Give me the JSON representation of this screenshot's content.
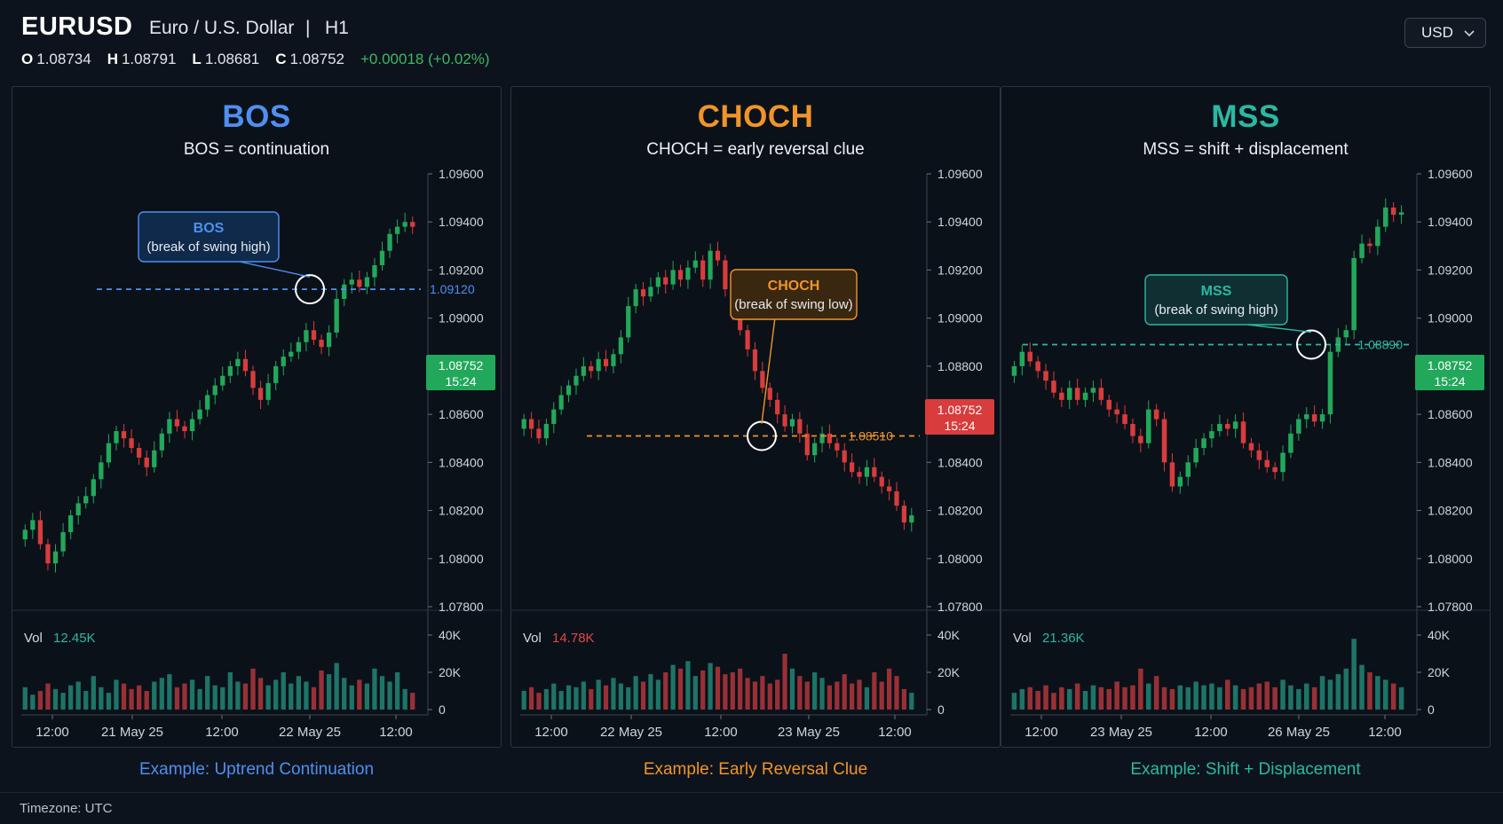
{
  "header": {
    "symbol": "EURUSD",
    "description": "Euro / U.S. Dollar",
    "separator": "|",
    "timeframe": "H1",
    "ohlc": {
      "o_label": "O",
      "o_value": "1.08734",
      "h_label": "H",
      "h_value": "1.08791",
      "l_label": "L",
      "l_value": "1.08681",
      "c_label": "C",
      "c_value": "1.08752",
      "change": "+0.00018 (+0.02%)"
    },
    "currency": "USD",
    "currency_icon": "chevron-down-icon"
  },
  "colors": {
    "up": "#22a85a",
    "down": "#d83c3c",
    "bos": "#4f8ff0",
    "choch": "#f0942a",
    "mss": "#2bb8a3"
  },
  "panels": [
    {
      "id": "bos",
      "title": "BOS",
      "subtitle": "BOS = continuation",
      "accent": "#4f8ff0",
      "callout_title": "BOS",
      "callout_text": "(break of swing high)",
      "level_label": "1.09120",
      "price_tag": "1.08752",
      "price_time": "15:24",
      "price_tag_color": "#22a85a",
      "vol_label": "Vol",
      "vol_value": "12.45K",
      "vol_value_color": "#2bb8a3",
      "caption": "Example: Uptrend Continuation",
      "y_ticks": [
        "1.09600",
        "1.09400",
        "1.09200",
        "1.09000",
        "1.08800",
        "1.08600",
        "1.08400",
        "1.08200",
        "1.08000",
        "1.07800"
      ],
      "vol_ticks": [
        "40K",
        "20K",
        "0"
      ],
      "x_ticks": [
        "12:00",
        "21 May 25",
        "12:00",
        "22 May 25",
        "12:00"
      ]
    },
    {
      "id": "choch",
      "title": "CHOCH",
      "subtitle": "CHOCH = early reversal clue",
      "accent": "#f0942a",
      "callout_title": "CHOCH",
      "callout_text": "(break of swing low)",
      "level_label": "1.08510",
      "price_tag": "1.08752",
      "price_time": "15:24",
      "price_tag_color": "#d83c3c",
      "vol_label": "Vol",
      "vol_value": "14.78K",
      "vol_value_color": "#e04848",
      "caption": "Example: Early Reversal Clue",
      "y_ticks": [
        "1.09600",
        "1.09400",
        "1.09200",
        "1.09000",
        "1.08800",
        "1.08600",
        "1.08400",
        "1.08200",
        "1.08000",
        "1.07800"
      ],
      "vol_ticks": [
        "40K",
        "20K",
        "0"
      ],
      "x_ticks": [
        "12:00",
        "22 May 25",
        "12:00",
        "23 May 25",
        "12:00"
      ]
    },
    {
      "id": "mss",
      "title": "MSS",
      "subtitle": "MSS = shift + displacement",
      "accent": "#2bb8a3",
      "callout_title": "MSS",
      "callout_text": "(break of swing high)",
      "level_label": "1.08890",
      "price_tag": "1.08752",
      "price_time": "15:24",
      "price_tag_color": "#22a85a",
      "vol_label": "Vol",
      "vol_value": "21.36K",
      "vol_value_color": "#2bb8a3",
      "caption": "Example: Shift + Displacement",
      "y_ticks": [
        "1.09600",
        "1.09400",
        "1.09200",
        "1.09000",
        "1.08800",
        "1.08600",
        "1.08400",
        "1.08200",
        "1.08000",
        "1.07800"
      ],
      "vol_ticks": [
        "40K",
        "20K",
        "0"
      ],
      "x_ticks": [
        "12:00",
        "23 May 25",
        "12:00",
        "26 May 25",
        "12:00"
      ]
    }
  ],
  "chart_data": [
    {
      "type": "candlestick",
      "title": "BOS",
      "y_range": [
        1.078,
        1.096
      ],
      "level": 1.0912,
      "closes": [
        1.0812,
        1.0816,
        1.0806,
        1.0798,
        1.0803,
        1.0811,
        1.0818,
        1.0823,
        1.0826,
        1.0833,
        1.084,
        1.0848,
        1.0853,
        1.085,
        1.0846,
        1.0842,
        1.0838,
        1.0845,
        1.0852,
        1.0858,
        1.0855,
        1.0853,
        1.0858,
        1.0862,
        1.0868,
        1.0872,
        1.0876,
        1.088,
        1.0883,
        1.0878,
        1.0871,
        1.0866,
        1.0873,
        1.088,
        1.0884,
        1.0886,
        1.089,
        1.0895,
        1.0891,
        1.0888,
        1.0894,
        1.0908,
        1.0914,
        1.0916,
        1.0913,
        1.0917,
        1.0922,
        1.0928,
        1.0935,
        1.0938,
        1.094,
        1.0938
      ],
      "volume": [
        12,
        8,
        10,
        14,
        11,
        9,
        13,
        15,
        10,
        18,
        12,
        9,
        16,
        14,
        11,
        13,
        10,
        15,
        17,
        19,
        12,
        14,
        16,
        11,
        18,
        13,
        12,
        20,
        15,
        14,
        22,
        17,
        13,
        16,
        20,
        14,
        18,
        15,
        12,
        21,
        19,
        25,
        17,
        13,
        16,
        14,
        22,
        18,
        15,
        20,
        11,
        9
      ]
    },
    {
      "type": "candlestick",
      "title": "CHOCH",
      "y_range": [
        1.078,
        1.096
      ],
      "level": 1.0851,
      "closes": [
        1.0858,
        1.0854,
        1.085,
        1.0856,
        1.0862,
        1.0868,
        1.0872,
        1.0876,
        1.088,
        1.0878,
        1.0883,
        1.088,
        1.0885,
        1.0892,
        1.0905,
        1.0912,
        1.0909,
        1.0913,
        1.0917,
        1.0914,
        1.092,
        1.0916,
        1.0921,
        1.0924,
        1.0916,
        1.0928,
        1.0924,
        1.0912,
        1.0903,
        1.0895,
        1.0887,
        1.0878,
        1.0871,
        1.0866,
        1.086,
        1.0855,
        1.0858,
        1.0852,
        1.0843,
        1.0848,
        1.0852,
        1.0848,
        1.0845,
        1.084,
        1.0836,
        1.0834,
        1.0838,
        1.0834,
        1.083,
        1.0828,
        1.0822,
        1.0815,
        1.0818
      ],
      "volume": [
        10,
        12,
        9,
        11,
        14,
        10,
        13,
        12,
        15,
        11,
        16,
        13,
        17,
        14,
        12,
        18,
        15,
        19,
        16,
        20,
        24,
        22,
        26,
        18,
        21,
        25,
        23,
        19,
        20,
        22,
        17,
        15,
        18,
        14,
        16,
        30,
        22,
        18,
        15,
        20,
        17,
        13,
        15,
        19,
        14,
        16,
        12,
        20,
        15,
        22,
        18,
        11,
        9
      ]
    },
    {
      "type": "candlestick",
      "title": "MSS",
      "y_range": [
        1.078,
        1.096
      ],
      "level": 1.0889,
      "closes": [
        1.088,
        1.0886,
        1.0882,
        1.0878,
        1.0874,
        1.0869,
        1.0866,
        1.0871,
        1.0866,
        1.0869,
        1.0871,
        1.0866,
        1.0862,
        1.086,
        1.0856,
        1.0851,
        1.0848,
        1.0862,
        1.0858,
        1.084,
        1.083,
        1.0834,
        1.084,
        1.0846,
        1.085,
        1.0853,
        1.0856,
        1.0854,
        1.0857,
        1.0848,
        1.0845,
        1.0841,
        1.0838,
        1.0836,
        1.0844,
        1.0852,
        1.0858,
        1.086,
        1.0857,
        1.086,
        1.0886,
        1.0892,
        1.0895,
        1.0925,
        1.0931,
        1.093,
        1.0938,
        1.0946,
        1.0943,
        1.0944
      ],
      "volume": [
        9,
        11,
        12,
        10,
        13,
        9,
        12,
        11,
        14,
        10,
        13,
        12,
        11,
        15,
        12,
        13,
        22,
        14,
        18,
        12,
        11,
        13,
        12,
        15,
        13,
        14,
        12,
        16,
        13,
        11,
        12,
        14,
        15,
        12,
        16,
        13,
        11,
        14,
        12,
        18,
        16,
        19,
        22,
        38,
        24,
        20,
        18,
        16,
        14,
        12
      ]
    }
  ],
  "footer": {
    "timezone": "Timezone: UTC"
  }
}
